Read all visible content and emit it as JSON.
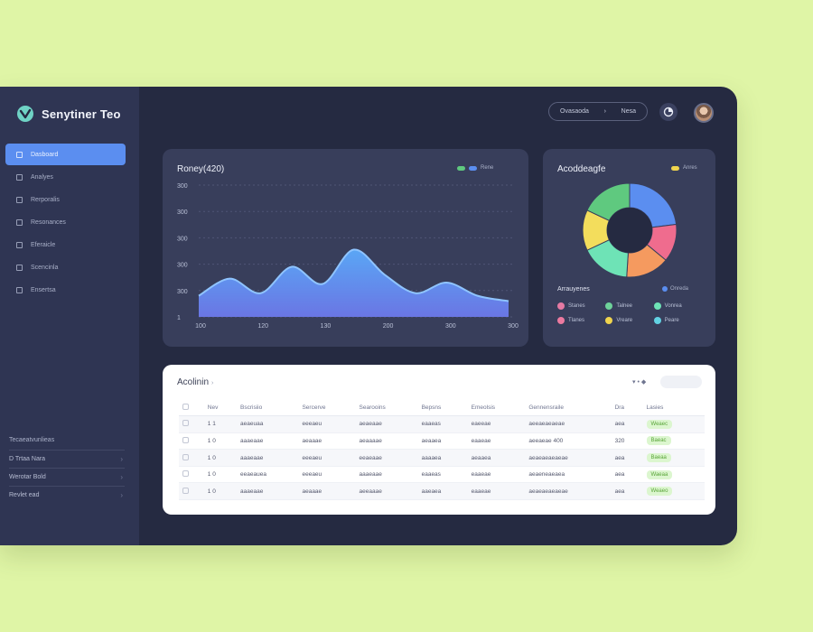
{
  "app": {
    "name": "Senytiner Teo"
  },
  "sidebar": {
    "items": [
      {
        "label": "Dasboard",
        "active": true,
        "icon": "dashboard-icon"
      },
      {
        "label": "Analyes",
        "active": false,
        "icon": "analytics-icon"
      },
      {
        "label": "Rerporalis",
        "active": false,
        "icon": "reports-icon"
      },
      {
        "label": "Resonances",
        "active": false,
        "icon": "resources-icon"
      },
      {
        "label": "Eferaicle",
        "active": false,
        "icon": "calendar-icon"
      },
      {
        "label": "Scencinla",
        "active": false,
        "icon": "settings-icon"
      },
      {
        "label": "Ensertsa",
        "active": false,
        "icon": "documents-icon"
      }
    ],
    "footer": {
      "heading": "Tecaeatvunlieas",
      "items": [
        "D Trtaa Nara",
        "Werotar Bold",
        "Revlet ead"
      ]
    }
  },
  "topbar": {
    "pill_left": "Ovasaoda",
    "pill_caret": "›",
    "pill_right": "Nesa"
  },
  "chart_card": {
    "title": "Roney(420)",
    "legend_label": "Rene"
  },
  "donut_card": {
    "title": "Acoddeagfe",
    "legend_label": "Anres",
    "segments_title": "Arrauyenes",
    "segments_badge": "Onreda",
    "segments": [
      {
        "label": "Stanes",
        "color": "#e57aa3"
      },
      {
        "label": "Talnee",
        "color": "#6ed29a"
      },
      {
        "label": "Vonrea",
        "color": "#6ee3b6"
      },
      {
        "label": "Tlanes",
        "color": "#ec7aa0"
      },
      {
        "label": "Vreare",
        "color": "#f0d44d"
      },
      {
        "label": "Peare",
        "color": "#62d2e3"
      }
    ]
  },
  "chart_data": [
    {
      "type": "area",
      "title": "Roney(420)",
      "y_ticks": [
        "300",
        "300",
        "300",
        "300",
        "300",
        "1"
      ],
      "x_ticks": [
        "100",
        "120",
        "130",
        "200",
        "300",
        "300"
      ],
      "ylim": [
        0,
        5
      ],
      "x": [
        0,
        0.5,
        1,
        1.5,
        2,
        2.5,
        3,
        3.5,
        4,
        4.5,
        5
      ],
      "series": [
        {
          "values": [
            0.8,
            1.45,
            0.9,
            1.9,
            1.25,
            2.55,
            1.6,
            0.9,
            1.3,
            0.8,
            0.6
          ]
        }
      ],
      "grid": true
    },
    {
      "type": "pie",
      "title": "Acoddeagfe",
      "donut": true,
      "values": [
        23,
        13,
        15,
        17,
        14,
        18
      ],
      "colors": [
        "#5b8ef0",
        "#ef6c8e",
        "#f59a5f",
        "#6ee3b6",
        "#f3dd5c",
        "#5fc97f"
      ]
    }
  ],
  "table": {
    "title": "Acolinin",
    "title_caret": "›",
    "filter_label": "▾ • ◆",
    "columns": [
      "",
      "Nev",
      "Bscrisiio",
      "Sercerve",
      "Searooins",
      "Bepsns",
      "Emeolsis",
      "Gennensraile",
      "Dra",
      "Lasies"
    ],
    "rows": [
      [
        "",
        "1 1",
        "aeaeuaa",
        "eeeaeu",
        "aeaeaae",
        "eaaeas",
        "eaeeae",
        "aeeaeaeaeae",
        "aea",
        "Weaec"
      ],
      [
        "",
        "1 0",
        "aaaeaae",
        "aeaaae",
        "aeaaaae",
        "aeaaea",
        "eaaeae",
        "aeeaeae 400",
        "320",
        "Baeac"
      ],
      [
        "",
        "1 0",
        "aaaeaae",
        "eeeaeu",
        "eeaeaae",
        "aaaaea",
        "aeaaea",
        "aeaeaeaeaeae",
        "aea",
        "Baeaa"
      ],
      [
        "",
        "1 0",
        "eeaeauea",
        "eeeaeu",
        "aaaeaae",
        "eaaeas",
        "eaaeae",
        "aeaeneaeaea",
        "aea",
        "Waeaa"
      ],
      [
        "",
        "1 0",
        "aaaeaae",
        "aeaaae",
        "aeeaaae",
        "aaeaea",
        "eaaeae",
        "aeaeaeaeaeae",
        "aea",
        "Weaeo"
      ]
    ]
  },
  "colors": {
    "background": "#dff5a6",
    "panel": "#252a41",
    "sidebar": "#2f3553",
    "card": "#383e5b",
    "accent": "#5b8ef0",
    "status_bg": "#dcf6cf",
    "status_text": "#5aa53a"
  }
}
